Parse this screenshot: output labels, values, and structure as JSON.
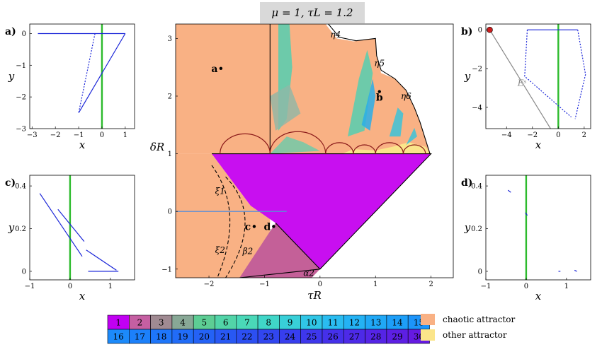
{
  "title": "μ = 1, τL = 1.2",
  "main": {
    "xlabel": "τR",
    "ylabel": "δR",
    "xlim": [
      -2.6,
      2.4
    ],
    "ylim": [
      -1.15,
      3.25
    ],
    "xticks": [
      -2,
      -1,
      0,
      1,
      2
    ],
    "yticks": [
      -1,
      0,
      1,
      2,
      3
    ],
    "region_colors": {
      "chaotic": "#f9b184",
      "other": "#fbe58a",
      "period1": "#c80ff0",
      "period2": "#c46098",
      "band": "#55cfb0"
    },
    "point_labels": [
      {
        "name": "a",
        "x": -1.9,
        "y": 2.48
      },
      {
        "name": "b",
        "x": 1.07,
        "y": 1.98
      },
      {
        "name": "c",
        "x": -1.3,
        "y": -0.26
      },
      {
        "name": "d",
        "x": -0.95,
        "y": -0.26
      }
    ],
    "curve_labels": [
      {
        "name": "η4",
        "x": 0.28,
        "y": 3.02
      },
      {
        "name": "η5",
        "x": 1.07,
        "y": 2.52
      },
      {
        "name": "η6",
        "x": 1.55,
        "y": 1.95
      },
      {
        "name": "ξ1",
        "x": -1.8,
        "y": 0.3
      },
      {
        "name": "ξ2",
        "x": -1.8,
        "y": -0.72
      },
      {
        "name": "β2",
        "x": -1.3,
        "y": -0.74
      },
      {
        "name": "α2",
        "x": -0.2,
        "y": -1.12
      }
    ]
  },
  "panels": {
    "a": {
      "label": "a)",
      "xlabel": "x",
      "ylabel": "y",
      "xlim": [
        -3.1,
        1.4
      ],
      "ylim": [
        -3,
        0.3
      ],
      "xticks": [
        -3,
        -2,
        -1,
        0,
        1
      ],
      "yticks": [
        0,
        -1,
        -2,
        -3
      ],
      "series": [
        {
          "style": "solid",
          "x": [
            -2.75,
            1.0
          ],
          "y": [
            0,
            0
          ]
        },
        {
          "style": "solid",
          "x": [
            1.0,
            -1.0
          ],
          "y": [
            0,
            -2.5
          ]
        },
        {
          "style": "dotted",
          "x": [
            -0.3,
            -1.0
          ],
          "y": [
            0,
            -2.5
          ]
        }
      ]
    },
    "b": {
      "label": "b)",
      "xlabel": "x",
      "ylabel": "y",
      "xlim": [
        -5.6,
        2.5
      ],
      "ylim": [
        -5.1,
        0.3
      ],
      "xticks": [
        -4,
        -2,
        0,
        2
      ],
      "yticks": [
        0,
        -2,
        -4
      ],
      "series": [
        {
          "style": "solid",
          "x": [
            -2.4,
            1.5
          ],
          "y": [
            0,
            0
          ]
        },
        {
          "style": "dotted",
          "x": [
            1.5,
            2.1,
            1.3
          ],
          "y": [
            0,
            -2.3,
            -4.6
          ]
        },
        {
          "style": "dotted",
          "x": [
            -2.4,
            -2.6,
            1.0
          ],
          "y": [
            0,
            -2.4,
            -4.5
          ]
        }
      ],
      "manifold": {
        "label": "Eˢ",
        "x": [
          -5.3,
          -0.6
        ],
        "y": [
          0,
          -5.1
        ]
      },
      "fixed_point": {
        "x": -5.3,
        "y": 0
      }
    },
    "c": {
      "label": "c)",
      "xlabel": "x",
      "ylabel": "y",
      "xlim": [
        -1,
        1.6
      ],
      "ylim": [
        -0.04,
        0.45
      ],
      "xticks": [
        -1,
        0,
        1
      ],
      "yticks": [
        0.4,
        0.2,
        0
      ],
      "series": [
        {
          "style": "solid",
          "x": [
            -0.75,
            0.3
          ],
          "y": [
            0.365,
            0.07
          ]
        },
        {
          "style": "solid",
          "x": [
            -0.3,
            0.35
          ],
          "y": [
            0.29,
            0.14
          ]
        },
        {
          "style": "solid",
          "x": [
            0.4,
            1.15
          ],
          "y": [
            0.1,
            0.005
          ]
        },
        {
          "style": "solid",
          "x": [
            0.45,
            1.2
          ],
          "y": [
            0.0,
            0.0
          ]
        }
      ]
    },
    "d": {
      "label": "d)",
      "xlabel": "x",
      "ylabel": "y",
      "xlim": [
        -1,
        1.6
      ],
      "ylim": [
        -0.04,
        0.45
      ],
      "xticks": [
        -1,
        0,
        1
      ],
      "yticks": [
        0.4,
        0.2,
        0
      ],
      "series": [
        {
          "style": "solid",
          "x": [
            -0.45,
            -0.38
          ],
          "y": [
            0.38,
            0.37
          ]
        },
        {
          "style": "solid",
          "x": [
            -0.02,
            0.03
          ],
          "y": [
            0.275,
            0.262
          ]
        },
        {
          "style": "solid",
          "x": [
            0.8,
            0.85
          ],
          "y": [
            0.0,
            0.0
          ]
        },
        {
          "style": "solid",
          "x": [
            1.2,
            1.26
          ],
          "y": [
            0.005,
            0.0
          ]
        }
      ]
    }
  },
  "period_legend": {
    "cells": [
      {
        "n": "1",
        "color": "#c100f3"
      },
      {
        "n": "2",
        "color": "#c55fa2"
      },
      {
        "n": "3",
        "color": "#a08a92"
      },
      {
        "n": "4",
        "color": "#88a896"
      },
      {
        "n": "5",
        "color": "#5dcd94"
      },
      {
        "n": "6",
        "color": "#52d4a8"
      },
      {
        "n": "7",
        "color": "#4ad8b8"
      },
      {
        "n": "8",
        "color": "#40d6c8"
      },
      {
        "n": "9",
        "color": "#38cfd8"
      },
      {
        "n": "10",
        "color": "#30c6e6"
      },
      {
        "n": "11",
        "color": "#2abcf0"
      },
      {
        "n": "12",
        "color": "#24b2f4"
      },
      {
        "n": "13",
        "color": "#20a8f6"
      },
      {
        "n": "14",
        "color": "#1d9ef8"
      },
      {
        "n": "15",
        "color": "#1c94fa"
      },
      {
        "n": "16",
        "color": "#1c8afa"
      },
      {
        "n": "17",
        "color": "#1c80fa"
      },
      {
        "n": "18",
        "color": "#1e76fa"
      },
      {
        "n": "19",
        "color": "#216cf8"
      },
      {
        "n": "20",
        "color": "#2462f6"
      },
      {
        "n": "21",
        "color": "#2858f4"
      },
      {
        "n": "22",
        "color": "#2c4ff2"
      },
      {
        "n": "23",
        "color": "#3146f0"
      },
      {
        "n": "24",
        "color": "#373eee"
      },
      {
        "n": "25",
        "color": "#3e37ec"
      },
      {
        "n": "26",
        "color": "#4530ea"
      },
      {
        "n": "27",
        "color": "#4d2ae8"
      },
      {
        "n": "28",
        "color": "#5524e6"
      },
      {
        "n": "29",
        "color": "#5d1fe4"
      },
      {
        "n": "30",
        "color": "#651ae2"
      }
    ],
    "entries": [
      {
        "label": "chaotic attractor",
        "color": "#f9b184"
      },
      {
        "label": "other attractor",
        "color": "#fbe58a"
      }
    ]
  }
}
